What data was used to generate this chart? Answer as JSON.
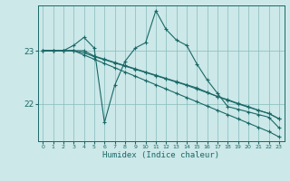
{
  "title": "",
  "xlabel": "Humidex (Indice chaleur)",
  "ylabel": "",
  "background_color": "#cce8e8",
  "grid_color": "#88bbbb",
  "line_color": "#1a6868",
  "marker_color": "#1a6868",
  "x_ticks": [
    0,
    1,
    2,
    3,
    4,
    5,
    6,
    7,
    8,
    9,
    10,
    11,
    12,
    13,
    14,
    15,
    16,
    17,
    18,
    19,
    20,
    21,
    22,
    23
  ],
  "y_ticks": [
    22,
    23
  ],
  "ylim": [
    21.3,
    23.85
  ],
  "xlim": [
    -0.5,
    23.5
  ],
  "series": [
    [
      23.0,
      23.0,
      23.0,
      23.1,
      23.25,
      23.05,
      21.65,
      22.35,
      22.8,
      23.05,
      23.15,
      23.75,
      23.4,
      23.2,
      23.1,
      22.75,
      22.45,
      22.2,
      21.95,
      21.9,
      21.85,
      21.8,
      21.75,
      21.55
    ],
    [
      23.0,
      23.0,
      23.0,
      23.0,
      23.0,
      22.9,
      22.84,
      22.78,
      22.72,
      22.66,
      22.6,
      22.54,
      22.48,
      22.42,
      22.36,
      22.3,
      22.22,
      22.14,
      22.07,
      22.0,
      21.94,
      21.88,
      21.82,
      21.72
    ],
    [
      23.0,
      23.0,
      23.0,
      23.0,
      22.96,
      22.89,
      22.83,
      22.77,
      22.71,
      22.65,
      22.59,
      22.53,
      22.47,
      22.41,
      22.35,
      22.28,
      22.21,
      22.14,
      22.08,
      22.01,
      21.95,
      21.88,
      21.82,
      21.72
    ],
    [
      23.0,
      23.0,
      23.0,
      23.0,
      22.92,
      22.84,
      22.76,
      22.68,
      22.6,
      22.52,
      22.44,
      22.36,
      22.28,
      22.2,
      22.12,
      22.04,
      21.96,
      21.88,
      21.8,
      21.72,
      21.64,
      21.56,
      21.48,
      21.38
    ]
  ]
}
